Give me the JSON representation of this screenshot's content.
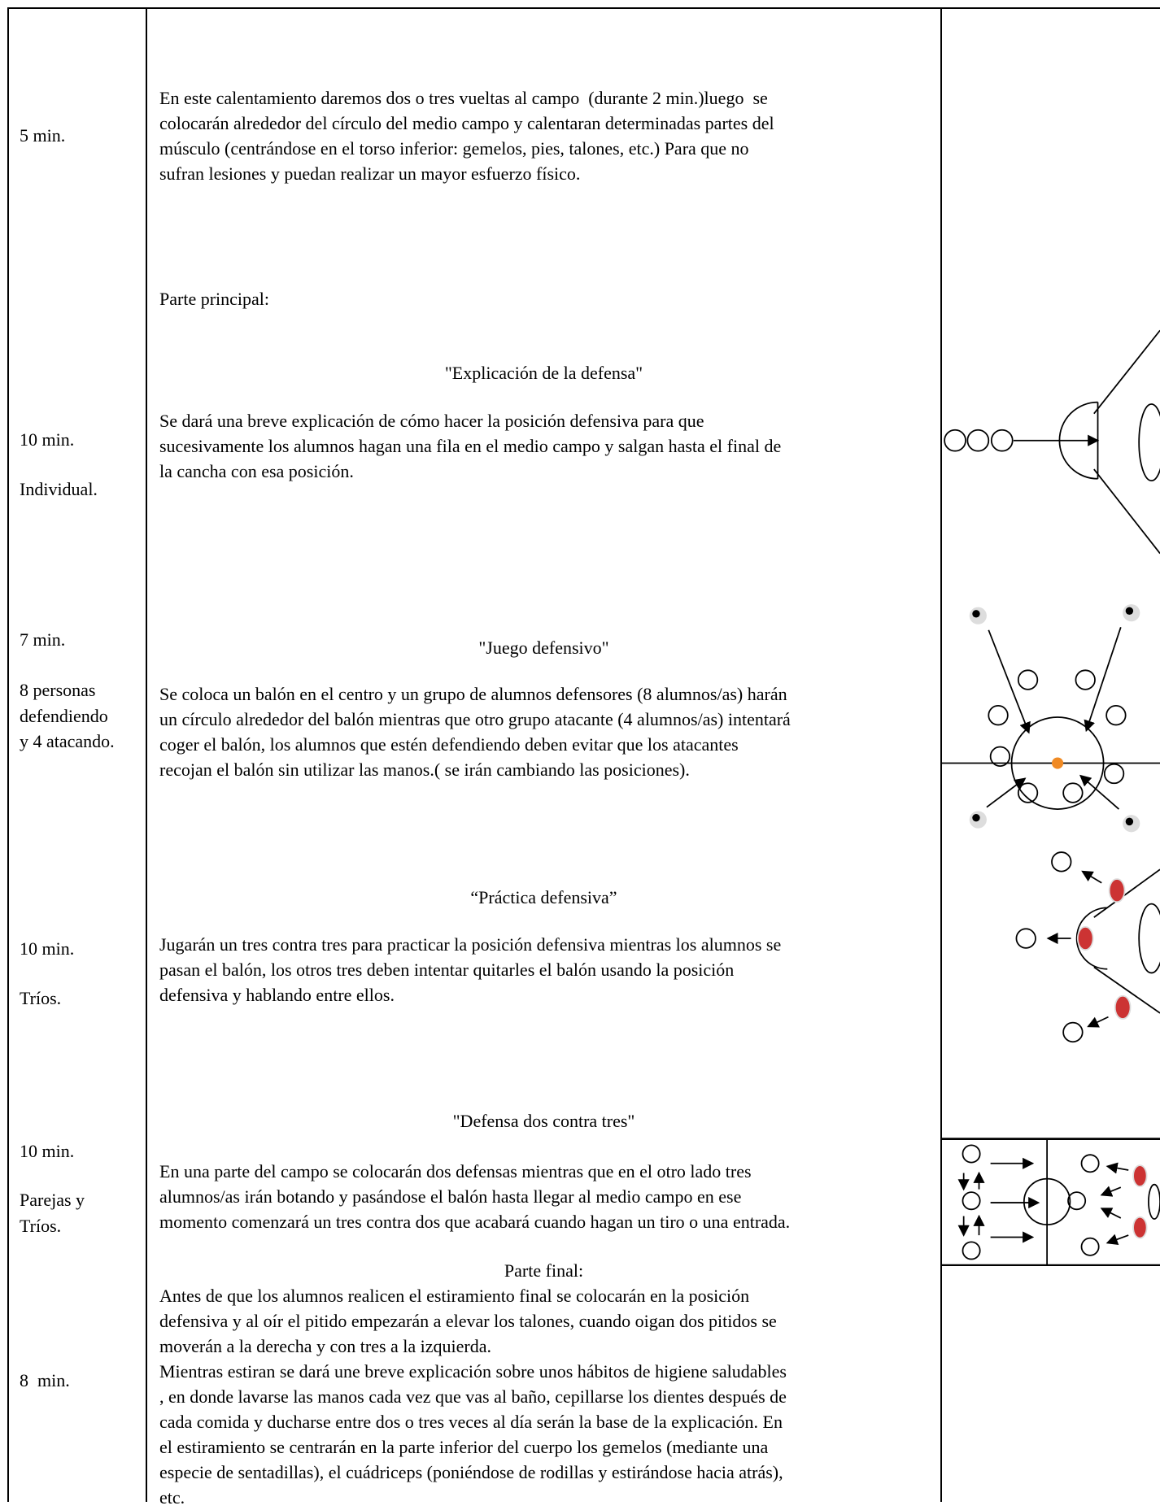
{
  "warmup": {
    "time": "5 min.",
    "lines": [
      "En este calentamiento daremos dos o tres vueltas al campo  (durante 2 min.)luego  se",
      "colocarán alrededor del círculo del medio campo y calentaran determinadas partes del",
      "músculo (centrándose en el torso inferior: gemelos, pies, talones, etc.) Para que no",
      "sufran lesiones y puedan realizar un mayor esfuerzo físico."
    ]
  },
  "main_heading": "Parte principal:",
  "sections": [
    {
      "title": "\"Explicación de la defensa\"",
      "time": [
        "10 min.",
        "Individual."
      ],
      "lines": [
        "Se dará una breve explicación de cómo hacer la posición defensiva para que",
        "sucesivamente los alumnos hagan una fila en el medio campo y salgan hasta el final de",
        "la cancha con esa posición."
      ]
    },
    {
      "title": "\"Juego defensivo\"",
      "time": [
        "7 min.",
        "8 personas",
        "defendiendo",
        "y 4 atacando."
      ],
      "lines": [
        "Se coloca un balón en el centro y un grupo de alumnos defensores (8 alumnos/as) harán",
        "un círculo alrededor del balón mientras que otro grupo atacante (4 alumnos/as) intentará",
        "coger el balón, los alumnos que estén defendiendo deben evitar que los atacantes",
        "recojan el balón sin utilizar las manos.( se irán cambiando las posiciones)."
      ]
    },
    {
      "title": "“Práctica defensiva”",
      "time": [
        "10 min.",
        "Tríos."
      ],
      "lines": [
        "Jugarán un tres contra tres para practicar la posición defensiva mientras los alumnos se",
        "pasan el balón, los otros tres deben intentar quitarles el balón usando la posición",
        "defensiva y hablando entre ellos."
      ]
    },
    {
      "title": "\"Defensa dos contra tres\"",
      "time": [
        "10 min.",
        "Parejas y",
        "Tríos."
      ],
      "lines": [
        "En una parte del campo se colocarán dos defensas mientras que en el otro lado tres",
        "alumnos/as irán botando y pasándose el balón hasta llegar al medio campo en ese",
        "momento comenzará un tres contra dos que acabará cuando hagan un tiro o una entrada."
      ]
    }
  ],
  "final": {
    "title": "Parte final:",
    "time": "8  min.",
    "lines": [
      "Antes de que los alumnos realicen el estiramiento final se colocarán en la posición",
      "defensiva y al oír el pitido empezarán a elevar los talones, cuando oigan dos pitidos se",
      "moverán a la derecha y con tres a la izquierda.",
      "Mientras estiran se dará une breve explicación sobre unos hábitos de higiene saludables",
      ", en donde lavarse las manos cada vez que vas al baño, cepillarse los dientes después de",
      "cada comida y ducharse entre dos o tres veces al día serán la base de la explicación. En",
      "el estiramiento se centrarán en la parte inferior del cuerpo los gemelos (mediante una",
      "especie de sentadillas), el cuádriceps (poniéndose de rodillas y estirándose hacia atrás),",
      "etc."
    ]
  }
}
